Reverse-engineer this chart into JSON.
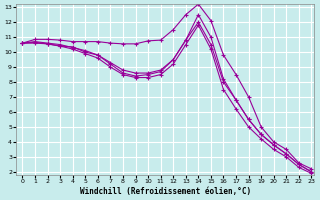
{
  "title": "",
  "xlabel": "Windchill (Refroidissement éolien,°C)",
  "ylabel": "",
  "bg_color": "#c8ecec",
  "grid_color": "#ffffff",
  "line_color": "#990099",
  "xlim": [
    -0.5,
    23.2
  ],
  "ylim": [
    1.8,
    13.2
  ],
  "xticks": [
    0,
    1,
    2,
    3,
    4,
    5,
    6,
    7,
    8,
    9,
    10,
    11,
    12,
    13,
    14,
    15,
    16,
    17,
    18,
    19,
    20,
    21,
    22,
    23
  ],
  "yticks": [
    2,
    3,
    4,
    5,
    6,
    7,
    8,
    9,
    10,
    11,
    12,
    13
  ],
  "series": [
    {
      "x": [
        0,
        1,
        2,
        3,
        4,
        5,
        6,
        7,
        8,
        9,
        10,
        11,
        12,
        13,
        14,
        15,
        16,
        17,
        18,
        19,
        20,
        21,
        22,
        23
      ],
      "y": [
        10.6,
        10.85,
        10.85,
        10.8,
        10.7,
        10.7,
        10.7,
        10.6,
        10.55,
        10.55,
        10.75,
        10.8,
        11.5,
        12.5,
        13.2,
        12.1,
        9.8,
        8.5,
        7.0,
        5.0,
        4.0,
        3.5,
        2.6,
        2.2
      ]
    },
    {
      "x": [
        0,
        1,
        2,
        3,
        4,
        5,
        6,
        7,
        8,
        9,
        10,
        11,
        12,
        13,
        14,
        15,
        16,
        17,
        18,
        19,
        20,
        21,
        22,
        23
      ],
      "y": [
        10.6,
        10.6,
        10.55,
        10.4,
        10.35,
        10.0,
        9.8,
        9.3,
        8.8,
        8.6,
        8.6,
        8.8,
        9.5,
        10.8,
        12.0,
        10.5,
        8.0,
        6.8,
        5.5,
        4.5,
        3.8,
        3.2,
        2.5,
        2.0
      ]
    },
    {
      "x": [
        0,
        1,
        2,
        3,
        4,
        5,
        6,
        7,
        8,
        9,
        10,
        11,
        12,
        13,
        14,
        15,
        16,
        17,
        18,
        19,
        20,
        21,
        22,
        23
      ],
      "y": [
        10.6,
        10.65,
        10.55,
        10.4,
        10.2,
        9.9,
        9.6,
        9.0,
        8.5,
        8.3,
        8.3,
        8.5,
        9.2,
        10.5,
        11.8,
        10.2,
        7.5,
        6.2,
        5.0,
        4.2,
        3.5,
        3.0,
        2.3,
        1.9
      ]
    },
    {
      "x": [
        0,
        1,
        2,
        3,
        4,
        5,
        6,
        7,
        8,
        9,
        10,
        11,
        12,
        13,
        14,
        15,
        16,
        17,
        18,
        19,
        20,
        21,
        22,
        23
      ],
      "y": [
        10.6,
        10.7,
        10.6,
        10.5,
        10.3,
        10.1,
        9.8,
        9.2,
        8.6,
        8.4,
        8.5,
        8.7,
        9.5,
        10.8,
        12.5,
        11.0,
        8.2,
        6.8,
        5.5,
        4.5,
        3.8,
        3.2,
        2.5,
        2.0
      ]
    }
  ]
}
